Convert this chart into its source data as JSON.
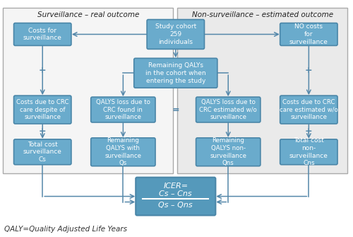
{
  "title_left": "Surveillance – real outcome",
  "title_right": "Non-surveillance – estimated outcome",
  "footnote": "QALY=Quality Adjusted Life Years",
  "bg_left_color": "#f5f5f5",
  "bg_right_color": "#eaeaea",
  "box_fill": "#6aabcc",
  "box_edge": "#4a86a8",
  "box_text_color": "white",
  "icer_fill": "#5599bb",
  "icer_edge": "#4a86a8",
  "arrow_color": "#5588aa",
  "plus_color": "#5588aa",
  "eq_color": "#5588aa"
}
